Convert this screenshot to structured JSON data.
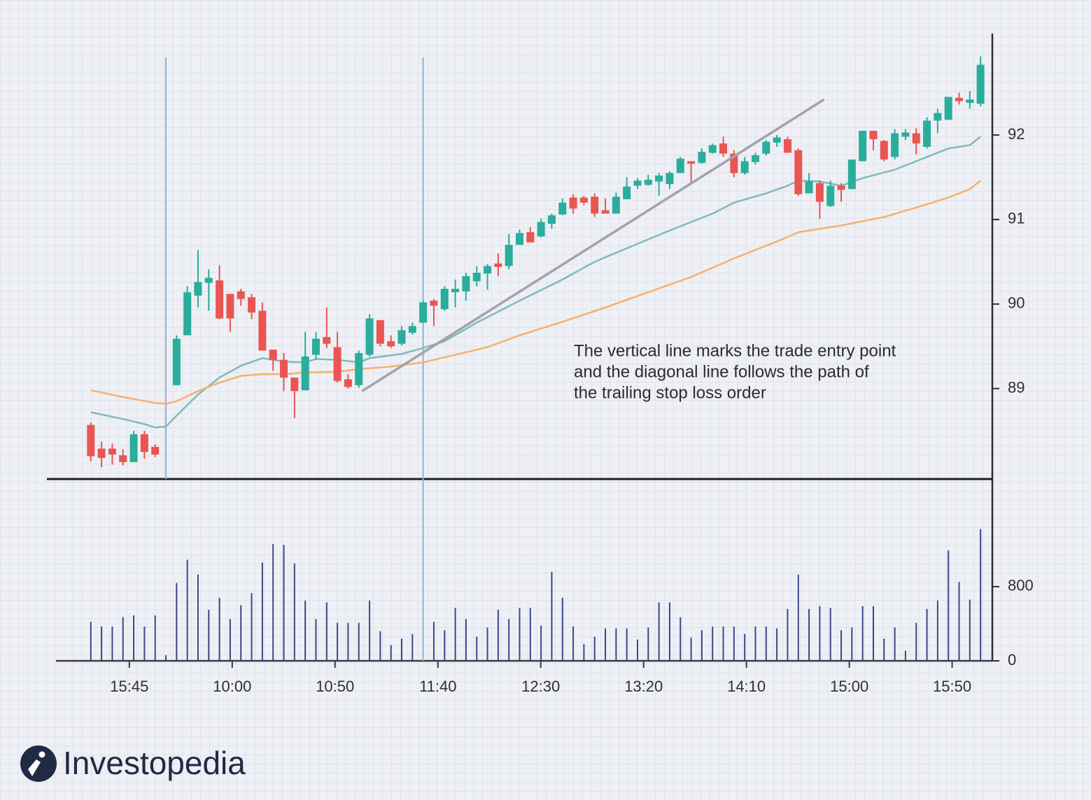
{
  "chart_data": {
    "type": "candlestick",
    "x": [
      0,
      1,
      2,
      3,
      4,
      5,
      6,
      7,
      8,
      9,
      10,
      11,
      12,
      13,
      14,
      15,
      16,
      17,
      18,
      19,
      20,
      21,
      22,
      23,
      24,
      25,
      26,
      27,
      28,
      29,
      30,
      31,
      32,
      33,
      34,
      35,
      36,
      37,
      38,
      39,
      40,
      41,
      42,
      43,
      44,
      45,
      46,
      47,
      48,
      49,
      50,
      51,
      52,
      53,
      54,
      55,
      56,
      57,
      58,
      59,
      60,
      61,
      62,
      63,
      64,
      65,
      66,
      67,
      68,
      69,
      70,
      71,
      72,
      73,
      74,
      75,
      76,
      77,
      78,
      79,
      80,
      81,
      82,
      83
    ],
    "open": [
      88.57,
      88.29,
      88.29,
      88.21,
      88.13,
      88.46,
      88.31,
      null,
      89.04,
      89.63,
      90.1,
      90.25,
      90.28,
      90.12,
      90.15,
      90.08,
      89.92,
      89.46,
      89.34,
      89.13,
      88.98,
      89.4,
      89.61,
      89.49,
      89.11,
      89.04,
      89.4,
      89.81,
      89.56,
      89.53,
      89.66,
      89.78,
      90.04,
      89.94,
      90.14,
      90.15,
      90.27,
      90.36,
      90.48,
      90.45,
      90.7,
      90.85,
      90.8,
      90.95,
      91.06,
      91.26,
      91.26,
      91.27,
      91.11,
      91.07,
      91.24,
      91.4,
      91.41,
      91.45,
      91.42,
      91.55,
      91.69,
      91.67,
      91.79,
      91.9,
      91.78,
      91.55,
      91.68,
      91.78,
      91.91,
      91.95,
      91.82,
      91.31,
      91.43,
      91.16,
      91.4,
      91.36,
      91.69,
      92.05,
      91.93,
      91.74,
      91.98,
      92.02,
      91.86,
      92.17,
      92.18,
      92.44,
      92.38,
      92.37
    ],
    "high": [
      88.6,
      88.37,
      88.35,
      88.28,
      88.5,
      88.5,
      88.34,
      null,
      89.63,
      90.21,
      90.64,
      90.41,
      90.46,
      90.12,
      90.18,
      90.12,
      90.02,
      89.46,
      89.42,
      89.13,
      89.67,
      89.67,
      89.96,
      89.67,
      89.17,
      89.45,
      89.88,
      89.81,
      89.63,
      89.74,
      89.78,
      90.04,
      90.06,
      90.21,
      90.29,
      90.37,
      90.45,
      90.47,
      90.6,
      90.83,
      90.88,
      90.91,
      91.01,
      91.07,
      91.25,
      91.3,
      91.28,
      91.31,
      91.25,
      91.32,
      91.5,
      91.49,
      91.53,
      91.55,
      91.57,
      91.74,
      91.69,
      91.84,
      91.9,
      91.98,
      91.82,
      91.74,
      91.79,
      91.94,
      92.0,
      91.98,
      91.84,
      91.55,
      91.46,
      91.46,
      91.43,
      91.71,
      92.05,
      92.05,
      91.94,
      92.07,
      92.07,
      92.08,
      92.21,
      92.31,
      92.45,
      92.5,
      92.52,
      92.93
    ],
    "low": [
      88.14,
      88.07,
      88.1,
      88.09,
      88.13,
      88.17,
      88.19,
      null,
      89.04,
      89.63,
      89.96,
      89.92,
      89.82,
      89.67,
      89.98,
      89.82,
      89.45,
      89.21,
      88.97,
      88.65,
      88.98,
      89.34,
      89.48,
      89.07,
      89.0,
      89.01,
      89.38,
      89.5,
      89.48,
      89.51,
      89.64,
      89.78,
      89.74,
      89.92,
      89.96,
      90.04,
      90.21,
      90.17,
      90.33,
      90.41,
      90.7,
      90.73,
      90.79,
      90.89,
      91.05,
      91.07,
      91.17,
      91.03,
      91.07,
      91.07,
      91.24,
      91.36,
      91.4,
      91.28,
      91.36,
      91.55,
      91.42,
      91.66,
      91.78,
      91.74,
      91.5,
      91.53,
      91.65,
      91.76,
      91.86,
      91.79,
      91.28,
      91.31,
      91.01,
      91.15,
      91.21,
      91.36,
      91.69,
      91.82,
      91.69,
      91.71,
      91.94,
      91.77,
      91.84,
      92.02,
      92.18,
      92.36,
      92.31,
      92.34
    ],
    "close": [
      88.2,
      88.18,
      88.22,
      88.13,
      88.46,
      88.25,
      88.22,
      null,
      89.59,
      90.14,
      90.26,
      90.31,
      89.83,
      89.83,
      90.06,
      89.9,
      89.45,
      89.34,
      89.13,
      88.97,
      89.38,
      89.59,
      89.53,
      89.09,
      89.02,
      89.42,
      89.83,
      89.53,
      89.5,
      89.69,
      89.74,
      90.02,
      89.98,
      90.18,
      90.18,
      90.33,
      90.37,
      90.45,
      90.44,
      90.7,
      90.84,
      90.73,
      90.97,
      91.05,
      91.2,
      91.13,
      91.2,
      91.07,
      91.07,
      91.27,
      91.39,
      91.46,
      91.47,
      91.52,
      91.55,
      91.72,
      91.66,
      91.8,
      91.88,
      91.78,
      91.55,
      91.69,
      91.76,
      91.92,
      91.97,
      91.79,
      91.3,
      91.45,
      91.21,
      91.4,
      91.35,
      91.71,
      92.05,
      91.95,
      91.71,
      92.02,
      92.03,
      91.9,
      92.17,
      92.26,
      92.45,
      92.4,
      92.42,
      92.83
    ],
    "volume": [
      420,
      370,
      370,
      470,
      490,
      370,
      490,
      60,
      840,
      1090,
      930,
      550,
      680,
      450,
      600,
      730,
      1060,
      1260,
      1250,
      1050,
      650,
      450,
      630,
      410,
      410,
      410,
      650,
      320,
      170,
      240,
      290,
      null,
      420,
      330,
      570,
      450,
      260,
      360,
      550,
      450,
      570,
      570,
      380,
      960,
      680,
      370,
      180,
      260,
      350,
      350,
      350,
      230,
      360,
      630,
      630,
      470,
      250,
      330,
      370,
      370,
      370,
      290,
      370,
      370,
      350,
      560,
      930,
      560,
      590,
      570,
      330,
      360,
      590,
      590,
      240,
      360,
      110,
      410,
      560,
      650,
      1190,
      850,
      660,
      1420
    ],
    "up_color": "#2aad9c",
    "down_color": "#ea5552",
    "volume_color": "#3a4789",
    "moving_averages": [
      {
        "color": "#80b9bd",
        "x": [
          0,
          3,
          5,
          6,
          7,
          8,
          10,
          12,
          14,
          16,
          18,
          20,
          21,
          23,
          25,
          26,
          29,
          31,
          33,
          36,
          40,
          44,
          47,
          50,
          54,
          58,
          60,
          63,
          65,
          66,
          68,
          70,
          72,
          75,
          78,
          80,
          82,
          83
        ],
        "values": [
          88.72,
          88.64,
          88.58,
          88.54,
          88.55,
          88.68,
          88.93,
          89.13,
          89.27,
          89.36,
          89.32,
          89.31,
          89.35,
          89.34,
          89.31,
          89.36,
          89.41,
          89.48,
          89.56,
          89.78,
          90.04,
          90.29,
          90.5,
          90.66,
          90.87,
          91.07,
          91.2,
          91.31,
          91.4,
          91.46,
          91.45,
          91.4,
          91.49,
          91.59,
          91.74,
          91.84,
          91.88,
          91.98
        ]
      },
      {
        "color": "#f6b06f",
        "x": [
          0,
          3,
          6,
          7,
          8,
          10,
          12,
          14,
          16,
          18,
          20,
          23,
          25,
          28,
          31,
          34,
          37,
          40,
          44,
          48,
          52,
          56,
          60,
          64,
          66,
          70,
          74,
          78,
          80,
          82,
          83
        ],
        "values": [
          88.98,
          88.9,
          88.83,
          88.82,
          88.85,
          88.97,
          89.07,
          89.15,
          89.17,
          89.17,
          89.19,
          89.2,
          89.23,
          89.26,
          89.31,
          89.4,
          89.49,
          89.63,
          89.79,
          89.96,
          90.14,
          90.32,
          90.54,
          90.74,
          90.85,
          90.93,
          91.03,
          91.18,
          91.26,
          91.36,
          91.46
        ]
      }
    ],
    "entry_lines": [
      7,
      31
    ],
    "trendline": {
      "x": [
        25.3,
        68.4
      ],
      "y": [
        88.97,
        92.42
      ]
    },
    "xlim": [
      -4.1,
      84.1
    ],
    "xticks": [
      {
        "value": 3.59,
        "label": "15:45"
      },
      {
        "value": 13.19,
        "label": "10:00"
      },
      {
        "value": 22.78,
        "label": "10:50"
      },
      {
        "value": 32.38,
        "label": "11:40"
      },
      {
        "value": 41.97,
        "label": "12:30"
      },
      {
        "value": 51.57,
        "label": "13:20"
      },
      {
        "value": 61.16,
        "label": "14:10"
      },
      {
        "value": 70.76,
        "label": "15:00"
      },
      {
        "value": 80.35,
        "label": "15:50"
      }
    ],
    "ylim": [
      87.93,
      93.2
    ],
    "yticks": [
      89,
      90,
      91,
      92
    ],
    "y2lim": [
      0,
      1960
    ],
    "y2ticks": [
      0,
      800
    ],
    "annotation": [
      "The vertical line marks the trade entry point",
      "and the diagonal line follows the path of",
      "the trailing stop loss order"
    ]
  },
  "brand": "Investopedia"
}
